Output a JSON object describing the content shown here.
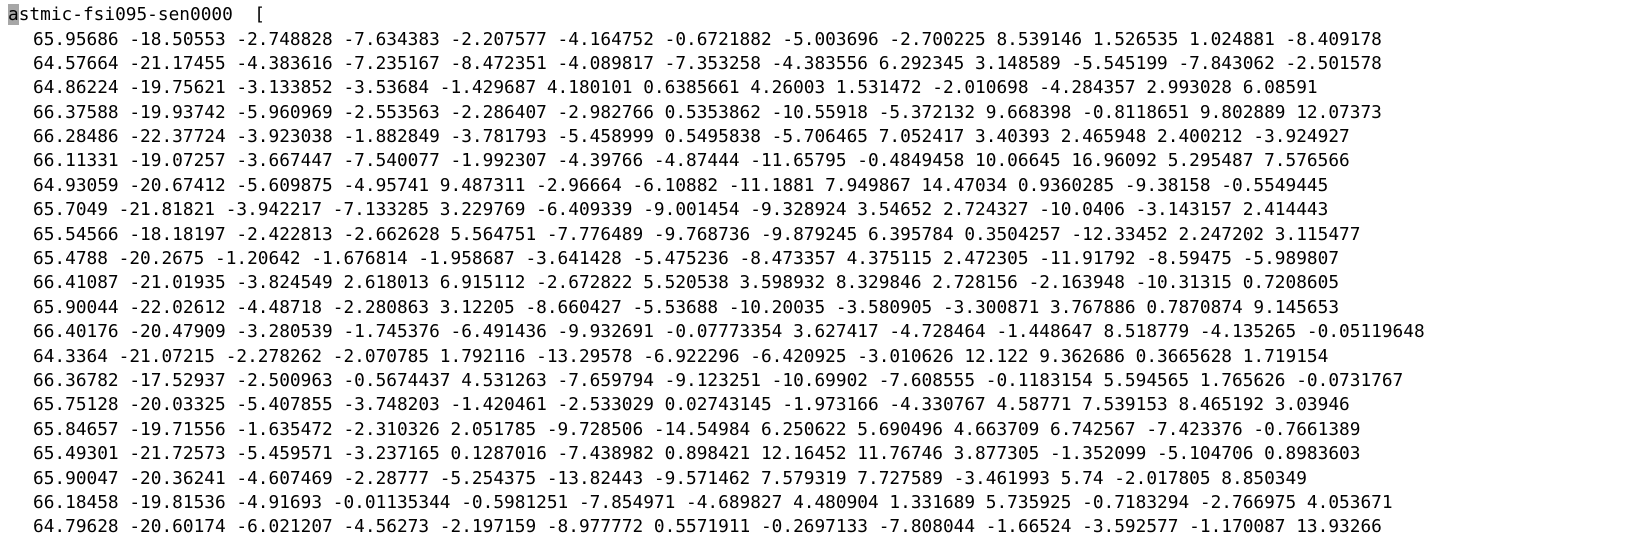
{
  "terminal": {
    "header": {
      "cursor_char": "a",
      "rest": "stmic-fsi095-sen0000  ["
    },
    "rows": [
      "65.95686 -18.50553 -2.748828 -7.634383 -2.207577 -4.164752 -0.6721882 -5.003696 -2.700225 8.539146 1.526535 1.024881 -8.409178",
      "64.57664 -21.17455 -4.383616 -7.235167 -8.472351 -4.089817 -7.353258 -4.383556 6.292345 3.148589 -5.545199 -7.843062 -2.501578",
      "64.86224 -19.75621 -3.133852 -3.53684 -1.429687 4.180101 0.6385661 4.26003 1.531472 -2.010698 -4.284357 2.993028 6.08591",
      "66.37588 -19.93742 -5.960969 -2.553563 -2.286407 -2.982766 0.5353862 -10.55918 -5.372132 9.668398 -0.8118651 9.802889 12.07373",
      "66.28486 -22.37724 -3.923038 -1.882849 -3.781793 -5.458999 0.5495838 -5.706465 7.052417 3.40393 2.465948 2.400212 -3.924927",
      "66.11331 -19.07257 -3.667447 -7.540077 -1.992307 -4.39766 -4.87444 -11.65795 -0.4849458 10.06645 16.96092 5.295487 7.576566",
      "64.93059 -20.67412 -5.609875 -4.95741 9.487311 -2.96664 -6.10882 -11.1881 7.949867 14.47034 0.9360285 -9.38158 -0.5549445",
      "65.7049 -21.81821 -3.942217 -7.133285 3.229769 -6.409339 -9.001454 -9.328924 3.54652 2.724327 -10.0406 -3.143157 2.414443",
      "65.54566 -18.18197 -2.422813 -2.662628 5.564751 -7.776489 -9.768736 -9.879245 6.395784 0.3504257 -12.33452 2.247202 3.115477",
      "65.4788 -20.2675 -1.20642 -1.676814 -1.958687 -3.641428 -5.475236 -8.473357 4.375115 2.472305 -11.91792 -8.59475 -5.989807",
      "66.41087 -21.01935 -3.824549 2.618013 6.915112 -2.672822 5.520538 3.598932 8.329846 2.728156 -2.163948 -10.31315 0.7208605",
      "65.90044 -22.02612 -4.48718 -2.280863 3.12205 -8.660427 -5.53688 -10.20035 -3.580905 -3.300871 3.767886 0.7870874 9.145653",
      "66.40176 -20.47909 -3.280539 -1.745376 -6.491436 -9.932691 -0.07773354 3.627417 -4.728464 -1.448647 8.518779 -4.135265 -0.05119648",
      "64.3364 -21.07215 -2.278262 -2.070785 1.792116 -13.29578 -6.922296 -6.420925 -3.010626 12.122 9.362686 0.3665628 1.719154",
      "66.36782 -17.52937 -2.500963 -0.5674437 4.531263 -7.659794 -9.123251 -10.69902 -7.608555 -0.1183154 5.594565 1.765626 -0.0731767",
      "65.75128 -20.03325 -5.407855 -3.748203 -1.420461 -2.533029 0.02743145 -1.973166 -4.330767 4.58771 7.539153 8.465192 3.03946",
      "65.84657 -19.71556 -1.635472 -2.310326 2.051785 -9.728506 -14.54984 6.250622 5.690496 4.663709 6.742567 -7.423376 -0.7661389",
      "65.49301 -21.72573 -5.459571 -3.237165 0.1287016 -7.438982 0.898421 12.16452 11.76746 3.877305 -1.352099 -5.104706 0.8983603",
      "65.90047 -20.36241 -4.607469 -2.28777 -5.254375 -13.82443 -9.571462 7.579319 7.727589 -3.461993 5.74 -2.017805 8.850349",
      "66.18458 -19.81536 -4.91693 -0.01135344 -0.5981251 -7.854971 -4.689827 4.480904 1.331689 5.735925 -0.7183294 -2.766975 4.053671",
      "64.79628 -20.60174 -6.021207 -4.56273 -2.197159 -8.977772 0.5571911 -0.2697133 -7.808044 -1.66524 -3.592577 -1.170087 13.93266"
    ]
  }
}
